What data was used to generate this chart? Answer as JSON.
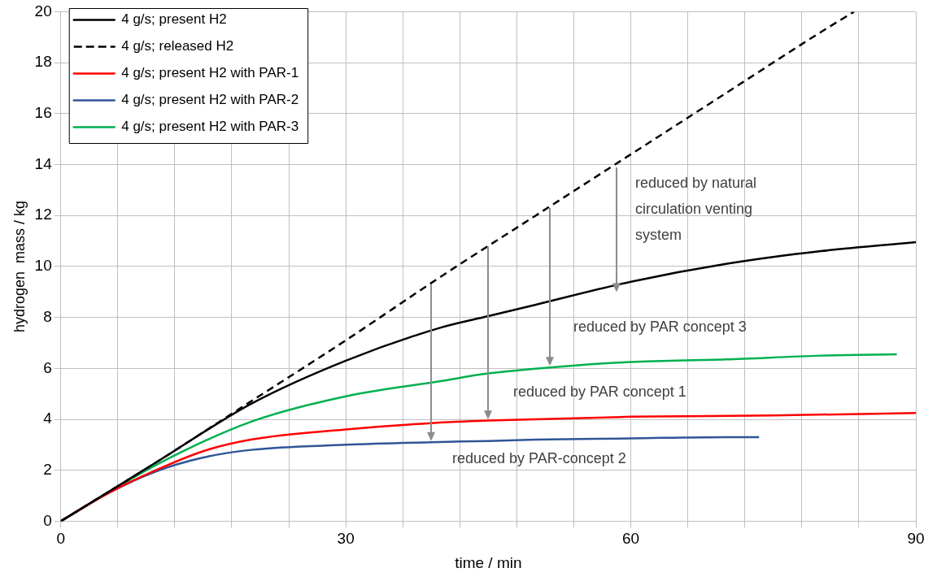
{
  "chart_data": {
    "type": "line",
    "xlabel": "time / min",
    "ylabel": "hydrogen  mass / kg",
    "xlim": [
      0,
      90
    ],
    "xticks": [
      0,
      {
        "value": 6,
        "label": null
      },
      {
        "value": 12,
        "label": null
      },
      {
        "value": 18,
        "label": null
      },
      {
        "value": 24,
        "label": null
      },
      30,
      {
        "value": 36,
        "label": null
      },
      {
        "value": 42,
        "label": null
      },
      {
        "value": 48,
        "label": null
      },
      {
        "value": 54,
        "label": null
      },
      60,
      {
        "value": 66,
        "label": null
      },
      {
        "value": 72,
        "label": null
      },
      {
        "value": 78,
        "label": null
      },
      {
        "value": 84,
        "label": null
      },
      90
    ],
    "ylim": [
      0,
      20
    ],
    "yticks": [
      0,
      2,
      4,
      6,
      8,
      10,
      12,
      14,
      16,
      18,
      20
    ],
    "grid": true,
    "legend": "top left",
    "marker": "none",
    "series": [
      {
        "name": "4 g/s; present H2",
        "color": "#000000",
        "line_style": "solid",
        "x": [
          0,
          10,
          20,
          30,
          40,
          45,
          50,
          60,
          70,
          80,
          90
        ],
        "values": [
          0,
          2.3,
          4.6,
          6.3,
          7.6,
          8.05,
          8.5,
          9.4,
          10.1,
          10.6,
          10.95
        ]
      },
      {
        "name": "4 g/s; released H2",
        "color": "#000000",
        "line_style": "dashed",
        "x": [
          0,
          10,
          20,
          30,
          40,
          50,
          60,
          70,
          80,
          83.5
        ],
        "values": [
          0,
          2.3,
          4.7,
          7.1,
          9.6,
          12.0,
          14.4,
          16.8,
          19.2,
          20
        ]
      },
      {
        "name": "4 g/s; present H2 with PAR-1",
        "color": "#ff0000",
        "line_style": "solid",
        "x": [
          0,
          5,
          10,
          15,
          20,
          30,
          39,
          45,
          60,
          75,
          90
        ],
        "values": [
          0,
          1.1,
          2.0,
          2.75,
          3.2,
          3.6,
          3.85,
          3.95,
          4.1,
          4.15,
          4.25
        ]
      },
      {
        "name": "4 g/s; present H2 with PAR-2",
        "color": "#2f5597",
        "line_style": "solid",
        "x": [
          0,
          5,
          10,
          15,
          20,
          30,
          39,
          45,
          50,
          60,
          70,
          73.5
        ],
        "values": [
          0,
          1.1,
          1.95,
          2.5,
          2.8,
          3.0,
          3.1,
          3.15,
          3.2,
          3.25,
          3.3,
          3.3
        ]
      },
      {
        "name": "4 g/s; present H2 with PAR-3",
        "color": "#00b050",
        "line_style": "solid",
        "x": [
          0,
          10,
          20,
          30,
          40,
          45,
          52,
          60,
          70,
          80,
          88
        ],
        "values": [
          0,
          2.2,
          3.9,
          4.9,
          5.5,
          5.8,
          6.05,
          6.25,
          6.35,
          6.5,
          6.55
        ]
      }
    ],
    "annotations": [
      "reduced by natural circulation venting system",
      "reduced by PAR concept 3",
      "reduced by PAR concept 1",
      "reduced by PAR-concept 2"
    ]
  }
}
